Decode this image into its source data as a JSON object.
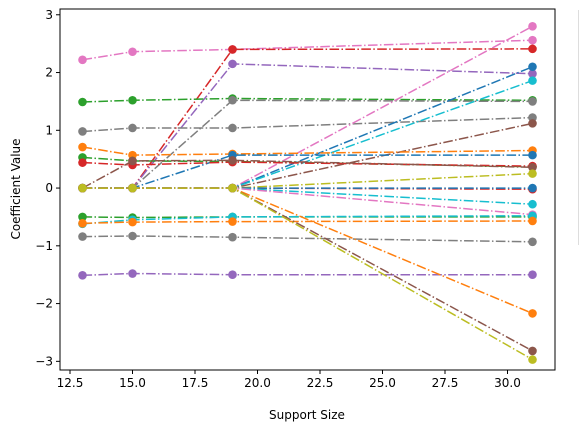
{
  "chart_data": {
    "type": "line",
    "title": "",
    "xlabel": "Support Size",
    "ylabel": "Coefficient Value",
    "x": [
      13,
      15,
      19,
      31
    ],
    "xlim": [
      12.1,
      31.9
    ],
    "ylim": [
      -3.15,
      3.1
    ],
    "xticks": [
      12.5,
      15.0,
      17.5,
      20.0,
      22.5,
      25.0,
      27.5,
      30.0
    ],
    "xtick_labels": [
      "12.5",
      "15.0",
      "17.5",
      "20.0",
      "22.5",
      "25.0",
      "27.5",
      "30.0"
    ],
    "yticks": [
      -3,
      -2,
      -1,
      0,
      1,
      2,
      3
    ],
    "ytick_labels": [
      "−3",
      "−2",
      "−1",
      "0",
      "1",
      "2",
      "3"
    ],
    "grid": false,
    "marker": "circle",
    "series": [
      {
        "color": "#e377c2",
        "style": "dashdot",
        "values": [
          2.22,
          2.36,
          2.4,
          2.56
        ]
      },
      {
        "color": "#d62728",
        "style": "dashdot",
        "values": [
          0.0,
          0.0,
          2.4,
          2.41
        ]
      },
      {
        "color": "#9467bd",
        "style": "dashdot",
        "values": [
          0.0,
          0.0,
          2.15,
          1.98
        ]
      },
      {
        "color": "#2ca02c",
        "style": "dashdot",
        "values": [
          1.49,
          1.52,
          1.55,
          1.52
        ]
      },
      {
        "color": "#7f7f7f",
        "style": "dashdot",
        "values": [
          0.0,
          0.0,
          1.52,
          1.5
        ]
      },
      {
        "color": "#7f7f7f",
        "style": "dashdot",
        "values": [
          0.98,
          1.04,
          1.04,
          1.22
        ]
      },
      {
        "color": "#e377c2",
        "style": "dashdot",
        "values": [
          0.0,
          0.0,
          0.0,
          2.8
        ]
      },
      {
        "color": "#1f77b4",
        "style": "dashdot",
        "values": [
          0.0,
          0.0,
          0.0,
          2.1
        ]
      },
      {
        "color": "#17becf",
        "style": "dashdot",
        "values": [
          0.0,
          0.0,
          0.0,
          1.86
        ]
      },
      {
        "color": "#8c564b",
        "style": "dashdot",
        "values": [
          0.0,
          0.0,
          0.0,
          1.12
        ]
      },
      {
        "color": "#ff7f0e",
        "style": "dashdot",
        "values": [
          0.71,
          0.57,
          0.59,
          0.65
        ]
      },
      {
        "color": "#1f77b4",
        "style": "dashdot",
        "values": [
          0.0,
          0.0,
          0.57,
          0.57
        ]
      },
      {
        "color": "#2ca02c",
        "style": "dashdot",
        "values": [
          0.53,
          0.47,
          0.46,
          0.37
        ]
      },
      {
        "color": "#d62728",
        "style": "dashdot",
        "values": [
          0.44,
          0.4,
          0.45,
          0.38
        ]
      },
      {
        "color": "#8c564b",
        "style": "dashdot",
        "values": [
          0.0,
          0.47,
          0.48,
          0.36
        ]
      },
      {
        "color": "#bcbd22",
        "style": "dashdot",
        "values": [
          0.0,
          0.0,
          0.0,
          0.25
        ]
      },
      {
        "color": "#d62728",
        "style": "dashdot",
        "values": [
          0.0,
          0.0,
          0.0,
          -0.02
        ]
      },
      {
        "color": "#1f77b4",
        "style": "dashdot",
        "values": [
          0.0,
          0.0,
          0.0,
          0.0
        ]
      },
      {
        "color": "#17becf",
        "style": "dashdot",
        "values": [
          0.0,
          0.0,
          0.0,
          -0.28
        ]
      },
      {
        "color": "#e377c2",
        "style": "dashdot",
        "values": [
          0.0,
          0.0,
          0.0,
          -0.46
        ]
      },
      {
        "color": "#2ca02c",
        "style": "dashdot",
        "values": [
          -0.5,
          -0.51,
          -0.5,
          -0.5
        ]
      },
      {
        "color": "#17becf",
        "style": "dashdot",
        "values": [
          -0.62,
          -0.55,
          -0.5,
          -0.48
        ]
      },
      {
        "color": "#ff7f0e",
        "style": "dashdot",
        "values": [
          -0.61,
          -0.59,
          -0.58,
          -0.57
        ]
      },
      {
        "color": "#7f7f7f",
        "style": "dashdot",
        "values": [
          -0.84,
          -0.83,
          -0.85,
          -0.93
        ]
      },
      {
        "color": "#9467bd",
        "style": "dashdot",
        "values": [
          -1.51,
          -1.48,
          -1.5,
          -1.5
        ]
      },
      {
        "color": "#ff7f0e",
        "style": "dashdot",
        "values": [
          0.0,
          0.0,
          0.0,
          -2.17
        ]
      },
      {
        "color": "#8c564b",
        "style": "dashdot",
        "values": [
          0.0,
          0.0,
          0.0,
          -2.82
        ]
      },
      {
        "color": "#bcbd22",
        "style": "dashdot",
        "values": [
          0.0,
          0.0,
          0.0,
          -2.97
        ]
      }
    ]
  }
}
